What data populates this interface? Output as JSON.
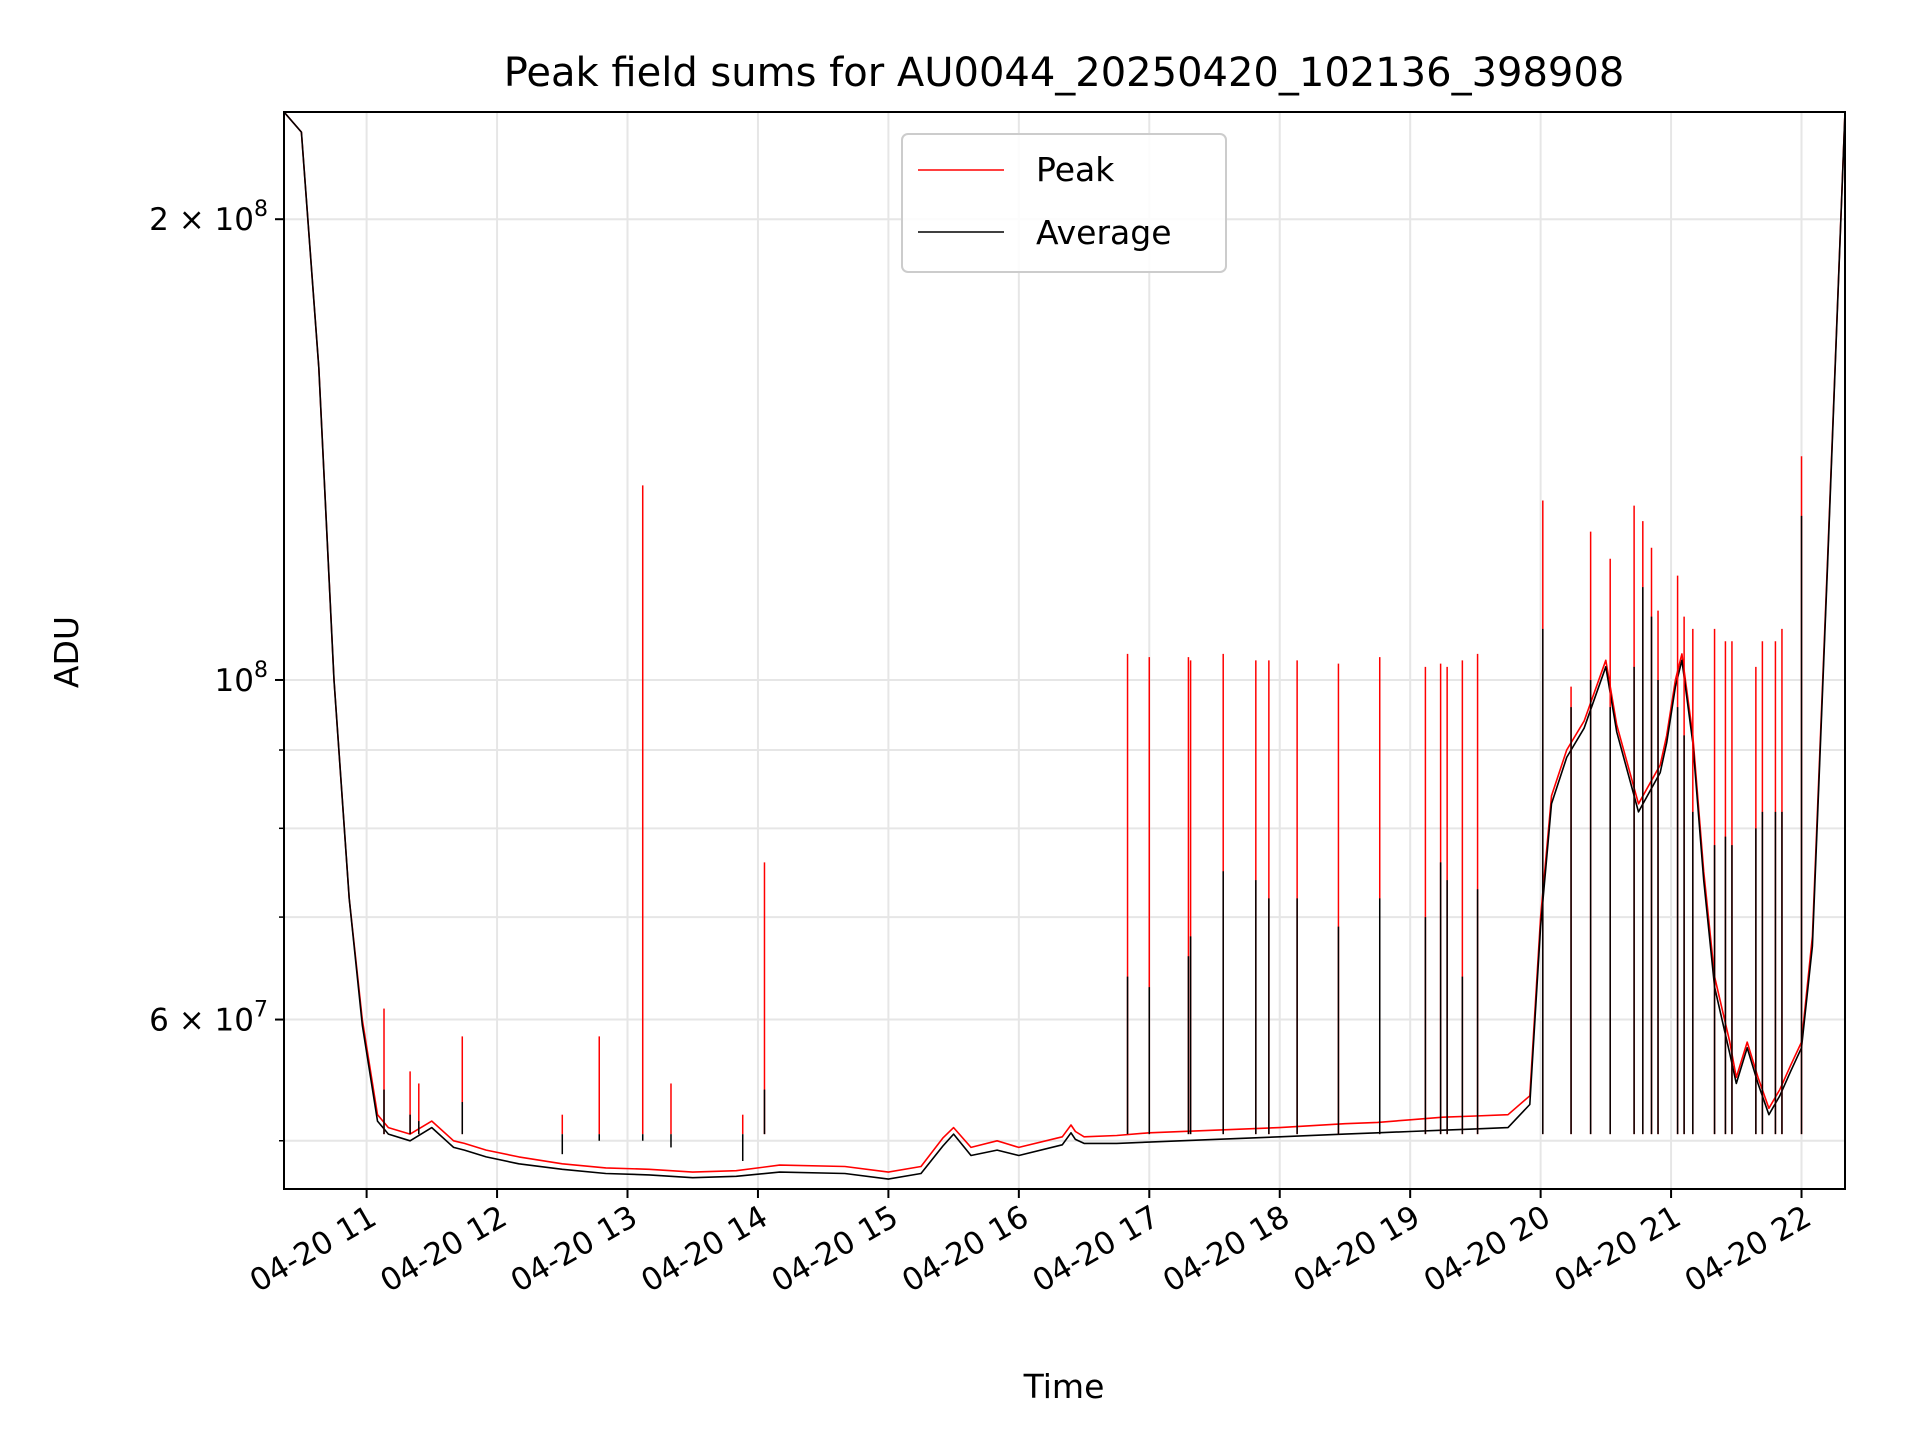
{
  "chart_data": {
    "type": "line",
    "title": "Peak field sums for AU0044_20250420_102136_398908",
    "xlabel": "Time",
    "ylabel": "ADU",
    "y_scale": "log",
    "ylim": [
      46500000,
      235000000
    ],
    "xlim": [
      "2025-04-20 10:22",
      "2025-04-20 22:20"
    ],
    "grid": true,
    "legend_position": "top-center",
    "x_ticks": [
      {
        "value": "2025-04-20 11:00",
        "label": "04-20 11"
      },
      {
        "value": "2025-04-20 12:00",
        "label": "04-20 12"
      },
      {
        "value": "2025-04-20 13:00",
        "label": "04-20 13"
      },
      {
        "value": "2025-04-20 14:00",
        "label": "04-20 14"
      },
      {
        "value": "2025-04-20 15:00",
        "label": "04-20 15"
      },
      {
        "value": "2025-04-20 16:00",
        "label": "04-20 16"
      },
      {
        "value": "2025-04-20 17:00",
        "label": "04-20 17"
      },
      {
        "value": "2025-04-20 18:00",
        "label": "04-20 18"
      },
      {
        "value": "2025-04-20 19:00",
        "label": "04-20 19"
      },
      {
        "value": "2025-04-20 20:00",
        "label": "04-20 20"
      },
      {
        "value": "2025-04-20 21:00",
        "label": "04-20 21"
      },
      {
        "value": "2025-04-20 22:00",
        "label": "04-20 22"
      }
    ],
    "y_ticks_major": [
      {
        "value": 100000000,
        "base": "10",
        "exp": "8"
      },
      {
        "value": 200000000,
        "base": "2 × 10",
        "exp": "8"
      },
      {
        "value": 60000000,
        "base": "6 × 10",
        "exp": "7"
      }
    ],
    "y_ticks_minor": [
      50000000,
      70000000,
      80000000,
      90000000
    ],
    "series": [
      {
        "name": "Peak",
        "color": "#ff0000",
        "x": [
          "2025-04-20 10:22",
          "2025-04-20 10:30",
          "2025-04-20 10:38",
          "2025-04-20 10:45",
          "2025-04-20 10:52",
          "2025-04-20 10:58",
          "2025-04-20 11:05",
          "2025-04-20 11:10",
          "2025-04-20 11:20",
          "2025-04-20 11:30",
          "2025-04-20 11:40",
          "2025-04-20 11:45",
          "2025-04-20 11:55",
          "2025-04-20 12:10",
          "2025-04-20 12:30",
          "2025-04-20 12:50",
          "2025-04-20 13:10",
          "2025-04-20 13:30",
          "2025-04-20 13:50",
          "2025-04-20 14:10",
          "2025-04-20 14:40",
          "2025-04-20 15:00",
          "2025-04-20 15:15",
          "2025-04-20 15:25",
          "2025-04-20 15:30",
          "2025-04-20 15:38",
          "2025-04-20 15:50",
          "2025-04-20 16:00",
          "2025-04-20 16:20",
          "2025-04-20 16:24",
          "2025-04-20 16:26",
          "2025-04-20 16:30",
          "2025-04-20 16:45",
          "2025-04-20 17:00",
          "2025-04-20 17:30",
          "2025-04-20 18:00",
          "2025-04-20 18:30",
          "2025-04-20 18:45",
          "2025-04-20 19:00",
          "2025-04-20 19:15",
          "2025-04-20 19:30",
          "2025-04-20 19:45",
          "2025-04-20 19:55",
          "2025-04-20 20:00",
          "2025-04-20 20:05",
          "2025-04-20 20:12",
          "2025-04-20 20:20",
          "2025-04-20 20:30",
          "2025-04-20 20:35",
          "2025-04-20 20:45",
          "2025-04-20 20:55",
          "2025-04-20 20:58",
          "2025-04-20 21:02",
          "2025-04-20 21:05",
          "2025-04-20 21:10",
          "2025-04-20 21:15",
          "2025-04-20 21:20",
          "2025-04-20 21:27",
          "2025-04-20 21:30",
          "2025-04-20 21:35",
          "2025-04-20 21:40",
          "2025-04-20 21:45",
          "2025-04-20 21:50",
          "2025-04-20 21:55",
          "2025-04-20 22:00",
          "2025-04-20 22:05",
          "2025-04-20 22:12",
          "2025-04-20 22:20"
        ],
        "y": [
          235000000,
          228000000,
          160000000,
          100000000,
          72000000,
          60000000,
          52000000,
          51000000,
          50500000,
          51500000,
          50000000,
          49800000,
          49300000,
          48800000,
          48300000,
          48000000,
          47900000,
          47700000,
          47800000,
          48200000,
          48100000,
          47700000,
          48100000,
          50200000,
          51000000,
          49500000,
          50000000,
          49500000,
          50300000,
          51200000,
          50700000,
          50300000,
          50400000,
          50600000,
          50800000,
          51000000,
          51300000,
          51400000,
          51600000,
          51800000,
          51900000,
          52000000,
          53500000,
          70000000,
          84000000,
          90000000,
          94000000,
          103000000,
          93500000,
          83000000,
          88000000,
          92000000,
          100000000,
          104000000,
          92000000,
          75000000,
          64000000,
          58000000,
          55000000,
          58000000,
          55000000,
          52500000,
          54000000,
          56000000,
          58000000,
          68000000,
          120000000,
          235000000
        ]
      },
      {
        "name": "Average",
        "color": "#000000",
        "x": [
          "2025-04-20 10:22",
          "2025-04-20 10:30",
          "2025-04-20 10:38",
          "2025-04-20 10:45",
          "2025-04-20 10:52",
          "2025-04-20 10:58",
          "2025-04-20 11:05",
          "2025-04-20 11:10",
          "2025-04-20 11:20",
          "2025-04-20 11:30",
          "2025-04-20 11:40",
          "2025-04-20 11:45",
          "2025-04-20 11:55",
          "2025-04-20 12:10",
          "2025-04-20 12:30",
          "2025-04-20 12:50",
          "2025-04-20 13:10",
          "2025-04-20 13:30",
          "2025-04-20 13:50",
          "2025-04-20 14:10",
          "2025-04-20 14:40",
          "2025-04-20 15:00",
          "2025-04-20 15:15",
          "2025-04-20 15:25",
          "2025-04-20 15:30",
          "2025-04-20 15:38",
          "2025-04-20 15:50",
          "2025-04-20 16:00",
          "2025-04-20 16:20",
          "2025-04-20 16:24",
          "2025-04-20 16:26",
          "2025-04-20 16:30",
          "2025-04-20 16:45",
          "2025-04-20 17:00",
          "2025-04-20 17:30",
          "2025-04-20 18:00",
          "2025-04-20 18:30",
          "2025-04-20 18:45",
          "2025-04-20 19:00",
          "2025-04-20 19:15",
          "2025-04-20 19:30",
          "2025-04-20 19:45",
          "2025-04-20 19:55",
          "2025-04-20 20:00",
          "2025-04-20 20:05",
          "2025-04-20 20:12",
          "2025-04-20 20:20",
          "2025-04-20 20:30",
          "2025-04-20 20:35",
          "2025-04-20 20:45",
          "2025-04-20 20:55",
          "2025-04-20 20:58",
          "2025-04-20 21:02",
          "2025-04-20 21:05",
          "2025-04-20 21:10",
          "2025-04-20 21:15",
          "2025-04-20 21:20",
          "2025-04-20 21:27",
          "2025-04-20 21:30",
          "2025-04-20 21:35",
          "2025-04-20 21:40",
          "2025-04-20 21:45",
          "2025-04-20 21:50",
          "2025-04-20 21:55",
          "2025-04-20 22:00",
          "2025-04-20 22:05",
          "2025-04-20 22:12",
          "2025-04-20 22:20"
        ],
        "y": [
          235000000,
          228000000,
          160000000,
          100000000,
          72000000,
          59500000,
          51500000,
          50500000,
          50000000,
          51000000,
          49500000,
          49300000,
          48800000,
          48300000,
          47900000,
          47600000,
          47500000,
          47300000,
          47400000,
          47700000,
          47600000,
          47200000,
          47600000,
          49600000,
          50500000,
          48900000,
          49300000,
          48900000,
          49700000,
          50600000,
          50100000,
          49800000,
          49800000,
          49900000,
          50100000,
          50300000,
          50500000,
          50600000,
          50700000,
          50800000,
          50900000,
          51000000,
          52800000,
          69000000,
          83000000,
          89000000,
          93000000,
          102000000,
          92500000,
          82000000,
          87000000,
          91000000,
          99000000,
          103000000,
          91000000,
          74000000,
          63000000,
          57000000,
          54500000,
          57500000,
          54500000,
          52000000,
          53500000,
          55500000,
          57500000,
          67000000,
          119000000,
          235000000
        ]
      }
    ],
    "spikes": {
      "x": [
        "2025-04-20 11:08",
        "2025-04-20 11:20",
        "2025-04-20 11:24",
        "2025-04-20 11:44",
        "2025-04-20 12:30",
        "2025-04-20 12:47",
        "2025-04-20 13:07",
        "2025-04-20 13:20",
        "2025-04-20 13:53",
        "2025-04-20 14:03",
        "2025-04-20 16:50",
        "2025-04-20 17:00",
        "2025-04-20 17:18",
        "2025-04-20 17:19",
        "2025-04-20 17:34",
        "2025-04-20 17:49",
        "2025-04-20 17:55",
        "2025-04-20 18:08",
        "2025-04-20 18:27",
        "2025-04-20 18:46",
        "2025-04-20 19:07",
        "2025-04-20 19:14",
        "2025-04-20 19:17",
        "2025-04-20 19:24",
        "2025-04-20 19:31",
        "2025-04-20 20:01",
        "2025-04-20 20:14",
        "2025-04-20 20:23",
        "2025-04-20 20:32",
        "2025-04-20 20:43",
        "2025-04-20 20:47",
        "2025-04-20 20:51",
        "2025-04-20 20:54",
        "2025-04-20 21:03",
        "2025-04-20 21:06",
        "2025-04-20 21:10",
        "2025-04-20 21:20",
        "2025-04-20 21:25",
        "2025-04-20 21:28",
        "2025-04-20 21:39",
        "2025-04-20 21:42",
        "2025-04-20 21:48",
        "2025-04-20 21:51",
        "2025-04-20 22:00"
      ],
      "peak": [
        61000000,
        55500000,
        54500000,
        58500000,
        52000000,
        58500000,
        134000000,
        54500000,
        52000000,
        76000000,
        104000000,
        103500000,
        103500000,
        103000000,
        104000000,
        103000000,
        103000000,
        103000000,
        102500000,
        103500000,
        102000000,
        102500000,
        102000000,
        103000000,
        104000000,
        131000000,
        99000000,
        125000000,
        120000000,
        130000000,
        127000000,
        122000000,
        111000000,
        117000000,
        110000000,
        108000000,
        108000000,
        106000000,
        106000000,
        102000000,
        106000000,
        106000000,
        108000000,
        140000000
      ],
      "average": [
        54000000,
        52000000,
        51500000,
        53000000,
        49000000,
        50000000,
        50000000,
        49500000,
        48500000,
        54000000,
        64000000,
        63000000,
        66000000,
        68000000,
        75000000,
        74000000,
        72000000,
        72000000,
        69000000,
        72000000,
        70000000,
        76000000,
        74000000,
        64000000,
        73000000,
        108000000,
        96000000,
        100000000,
        96000000,
        102000000,
        115000000,
        110000000,
        100000000,
        96000000,
        92000000,
        82000000,
        78000000,
        79000000,
        78000000,
        80000000,
        82000000,
        82000000,
        82000000,
        128000000
      ]
    }
  }
}
